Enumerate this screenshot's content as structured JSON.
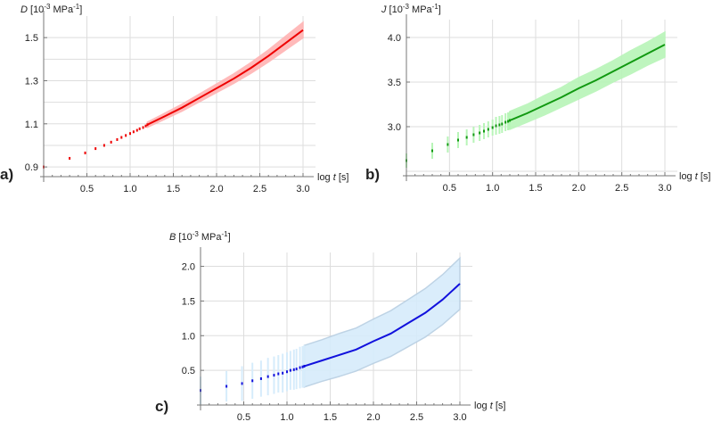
{
  "chart_data": [
    {
      "id": "a",
      "panel_label": "a)",
      "type": "line",
      "ylabel_var": "D",
      "ylabel_unit_pre": " [10",
      "ylabel_exp": "-3",
      "ylabel_unit_mid": " MPa",
      "ylabel_exp2": "-1",
      "ylabel_unit_post": "]",
      "xlabel_pre": "log ",
      "xlabel_var": "t",
      "xlabel_post": " [s]",
      "xlim": [
        0,
        3.0
      ],
      "ylim": [
        0.855,
        1.6
      ],
      "xticks": [
        0.5,
        1.0,
        1.5,
        2.0,
        2.5,
        3.0
      ],
      "xtick_labels": [
        "0.5",
        "1.0",
        "1.5",
        "2.0",
        "2.5",
        "3.0"
      ],
      "yticks": [
        0.9,
        1.1,
        1.3,
        1.5
      ],
      "ytick_labels": [
        "0.9",
        "1.1",
        "1.3",
        "1.5"
      ],
      "ygrid": [
        0.9,
        1.0,
        1.1,
        1.2,
        1.3,
        1.4,
        1.5
      ],
      "line_color": "#ee0000",
      "band_color": "#ffb3b3",
      "discrete_points": [
        [
          0.0,
          0.9
        ],
        [
          0.3,
          0.94
        ],
        [
          0.48,
          0.965
        ],
        [
          0.6,
          0.985
        ],
        [
          0.7,
          1.0
        ],
        [
          0.78,
          1.015
        ],
        [
          0.85,
          1.027
        ],
        [
          0.9,
          1.037
        ],
        [
          0.95,
          1.046
        ],
        [
          1.0,
          1.055
        ],
        [
          1.04,
          1.063
        ],
        [
          1.08,
          1.07
        ],
        [
          1.11,
          1.077
        ],
        [
          1.15,
          1.083
        ],
        [
          1.18,
          1.09
        ],
        [
          1.2,
          1.096
        ]
      ],
      "series": [
        {
          "name": "D mean",
          "x": [
            1.2,
            1.4,
            1.6,
            1.8,
            2.0,
            2.2,
            2.4,
            2.6,
            2.8,
            3.0
          ],
          "values": [
            1.096,
            1.135,
            1.175,
            1.22,
            1.265,
            1.31,
            1.36,
            1.415,
            1.475,
            1.535
          ]
        }
      ],
      "band_halfwidth": [
        0.012,
        0.014,
        0.016,
        0.018,
        0.02,
        0.022,
        0.025,
        0.028,
        0.032,
        0.036
      ],
      "grid": true
    },
    {
      "id": "b",
      "panel_label": "b)",
      "type": "line",
      "ylabel_var": "J",
      "ylabel_unit_pre": " [10",
      "ylabel_exp": "-3",
      "ylabel_unit_mid": " MPa",
      "ylabel_exp2": "-1",
      "ylabel_unit_post": "]",
      "xlabel_pre": "log ",
      "xlabel_var": "t",
      "xlabel_post": " [s]",
      "xlim": [
        0,
        3.0
      ],
      "ylim": [
        2.45,
        4.2
      ],
      "xticks": [
        0.5,
        1.0,
        1.5,
        2.0,
        2.5,
        3.0
      ],
      "xtick_labels": [
        "0.5",
        "1.0",
        "1.5",
        "2.0",
        "2.5",
        "3.0"
      ],
      "yticks": [
        3.0,
        3.5,
        4.0
      ],
      "ytick_labels": [
        "3.0",
        "3.5",
        "4.0"
      ],
      "ygrid": [
        2.5,
        3.0,
        3.5,
        4.0
      ],
      "line_color": "#119911",
      "band_color": "#b8f5b8",
      "discrete_points": [
        [
          0.0,
          2.62
        ],
        [
          0.3,
          2.73
        ],
        [
          0.48,
          2.8
        ],
        [
          0.6,
          2.85
        ],
        [
          0.7,
          2.88
        ],
        [
          0.78,
          2.91
        ],
        [
          0.85,
          2.93
        ],
        [
          0.9,
          2.95
        ],
        [
          0.95,
          2.97
        ],
        [
          1.0,
          2.99
        ],
        [
          1.04,
          3.01
        ],
        [
          1.08,
          3.02
        ],
        [
          1.11,
          3.03
        ],
        [
          1.15,
          3.05
        ],
        [
          1.18,
          3.06
        ],
        [
          1.2,
          3.07
        ]
      ],
      "discrete_err": [
        0.08,
        0.09,
        0.09,
        0.09,
        0.09,
        0.09,
        0.09,
        0.09,
        0.09,
        0.09,
        0.1,
        0.1,
        0.1,
        0.1,
        0.1,
        0.1
      ],
      "series": [
        {
          "name": "J mean",
          "x": [
            1.2,
            1.4,
            1.6,
            1.8,
            2.0,
            2.2,
            2.4,
            2.6,
            2.8,
            3.0
          ],
          "values": [
            3.07,
            3.15,
            3.24,
            3.33,
            3.43,
            3.52,
            3.62,
            3.72,
            3.82,
            3.92
          ]
        }
      ],
      "band_halfwidth": [
        0.1,
        0.1,
        0.11,
        0.11,
        0.12,
        0.12,
        0.12,
        0.13,
        0.13,
        0.14
      ],
      "grid": true
    },
    {
      "id": "c",
      "panel_label": "c)",
      "type": "line",
      "ylabel_var": "B",
      "ylabel_unit_pre": " [10",
      "ylabel_exp": "-3",
      "ylabel_unit_mid": " MPa",
      "ylabel_exp2": "-1",
      "ylabel_unit_post": "]",
      "xlabel_pre": "log ",
      "xlabel_var": "t",
      "xlabel_post": " [s]",
      "xlim": [
        0,
        3.0
      ],
      "ylim": [
        0.0,
        2.2
      ],
      "xticks": [
        0.5,
        1.0,
        1.5,
        2.0,
        2.5,
        3.0
      ],
      "xtick_labels": [
        "0.5",
        "1.0",
        "1.5",
        "2.0",
        "2.5",
        "3.0"
      ],
      "yticks": [
        0.5,
        1.0,
        1.5,
        2.0
      ],
      "ytick_labels": [
        "0.5",
        "1.0",
        "1.5",
        "2.0"
      ],
      "ygrid": [
        0.5,
        1.0,
        1.5,
        2.0
      ],
      "line_color": "#1111dd",
      "band_color": "#d6ecfb",
      "band_edge_color": "#b8cfe3",
      "discrete_points": [
        [
          0.0,
          0.21
        ],
        [
          0.3,
          0.27
        ],
        [
          0.48,
          0.31
        ],
        [
          0.6,
          0.35
        ],
        [
          0.7,
          0.38
        ],
        [
          0.78,
          0.41
        ],
        [
          0.85,
          0.43
        ],
        [
          0.9,
          0.45
        ],
        [
          0.95,
          0.46
        ],
        [
          1.0,
          0.48
        ],
        [
          1.04,
          0.5
        ],
        [
          1.08,
          0.51
        ],
        [
          1.11,
          0.52
        ],
        [
          1.15,
          0.54
        ],
        [
          1.18,
          0.55
        ],
        [
          1.2,
          0.56
        ]
      ],
      "discrete_err": [
        0.2,
        0.22,
        0.25,
        0.26,
        0.26,
        0.27,
        0.27,
        0.27,
        0.28,
        0.28,
        0.28,
        0.29,
        0.29,
        0.3,
        0.3,
        0.3
      ],
      "series": [
        {
          "name": "B mean",
          "x": [
            1.2,
            1.4,
            1.6,
            1.8,
            2.0,
            2.2,
            2.4,
            2.6,
            2.8,
            3.0
          ],
          "values": [
            0.56,
            0.64,
            0.72,
            0.8,
            0.92,
            1.03,
            1.18,
            1.33,
            1.52,
            1.75
          ]
        }
      ],
      "band_halfwidth": [
        0.3,
        0.3,
        0.31,
        0.31,
        0.32,
        0.33,
        0.34,
        0.35,
        0.36,
        0.37
      ],
      "grid": true
    }
  ]
}
